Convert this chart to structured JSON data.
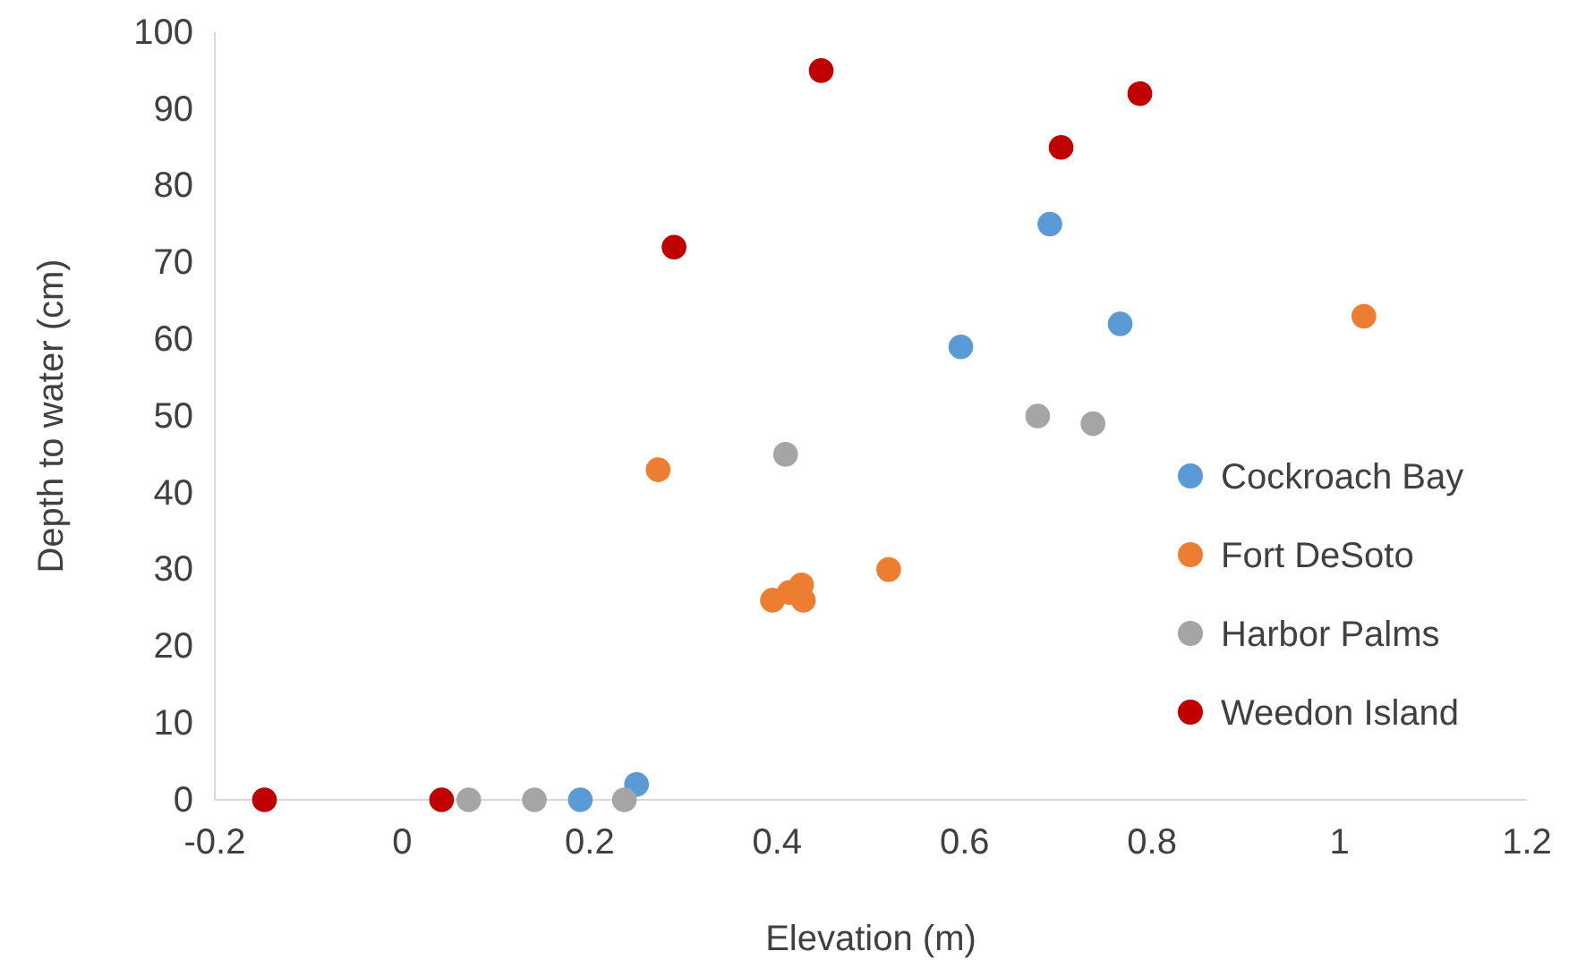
{
  "chart_data": {
    "type": "scatter",
    "xlabel": "Elevation (m)",
    "ylabel": "Depth to water (cm)",
    "xlim": [
      -0.2,
      1.2
    ],
    "xticks": [
      -0.2,
      0,
      0.2,
      0.4,
      0.6,
      0.8,
      1,
      1.2
    ],
    "ylim": [
      0,
      100
    ],
    "yticks": [
      0,
      10,
      20,
      30,
      40,
      50,
      60,
      70,
      80,
      90,
      100
    ],
    "grid": false,
    "legend": "right",
    "marker": "circle",
    "series": [
      {
        "name": "Cockroach Bay",
        "color": "#5b9bd5",
        "x": [
          0.25,
          0.19,
          0.596,
          0.691,
          0.766
        ],
        "values": [
          2,
          0,
          59,
          75,
          62
        ]
      },
      {
        "name": "Fort DeSoto",
        "color": "#ed7d31",
        "x": [
          0.273,
          0.395,
          0.413,
          0.426,
          0.428,
          0.519,
          1.026
        ],
        "values": [
          43,
          26,
          27,
          28,
          26,
          30,
          63
        ]
      },
      {
        "name": "Harbor Palms",
        "color": "#a5a5a5",
        "x": [
          0.071,
          0.141,
          0.237,
          0.409,
          0.678,
          0.737
        ],
        "values": [
          0,
          0,
          0,
          45,
          50,
          49
        ]
      },
      {
        "name": "Weedon Island",
        "color": "#c00000",
        "x": [
          -0.147,
          0.042,
          0.29,
          0.447,
          0.703,
          0.787
        ],
        "values": [
          0,
          0,
          72,
          95,
          85,
          92
        ]
      }
    ]
  }
}
